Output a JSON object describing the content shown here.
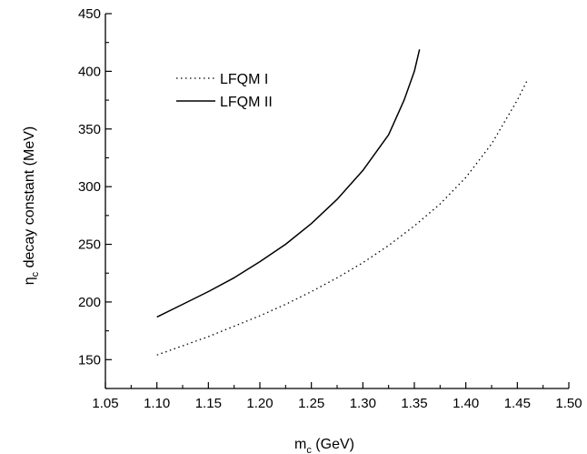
{
  "chart_data": {
    "type": "line",
    "xlabel_main": "m",
    "xlabel_sub": "c",
    "xlabel_rest": " (GeV)",
    "ylabel_main": "η",
    "ylabel_sub": "c",
    "ylabel_rest": " decay constant (MeV)",
    "xlim": [
      1.05,
      1.5
    ],
    "ylim": [
      125,
      450
    ],
    "x_ticks": [
      "1.05",
      "1.10",
      "1.15",
      "1.20",
      "1.25",
      "1.30",
      "1.35",
      "1.40",
      "1.45",
      "1.50"
    ],
    "y_ticks": [
      "150",
      "200",
      "250",
      "300",
      "350",
      "400",
      "450"
    ],
    "legend_position": "top-left",
    "series": [
      {
        "name": "LFQM I",
        "style": "dotted",
        "x": [
          1.1,
          1.125,
          1.15,
          1.175,
          1.2,
          1.225,
          1.25,
          1.275,
          1.3,
          1.325,
          1.35,
          1.375,
          1.4,
          1.425,
          1.45,
          1.46
        ],
        "y": [
          154,
          162,
          170,
          179,
          188,
          198,
          209,
          221,
          234,
          249,
          266,
          285,
          308,
          337,
          375,
          393
        ]
      },
      {
        "name": "LFQM II",
        "style": "solid",
        "x": [
          1.1,
          1.125,
          1.15,
          1.175,
          1.2,
          1.225,
          1.25,
          1.275,
          1.3,
          1.325,
          1.34,
          1.35,
          1.355
        ],
        "y": [
          187,
          198,
          209,
          221,
          235,
          250,
          268,
          289,
          314,
          345,
          375,
          400,
          419
        ]
      }
    ]
  }
}
